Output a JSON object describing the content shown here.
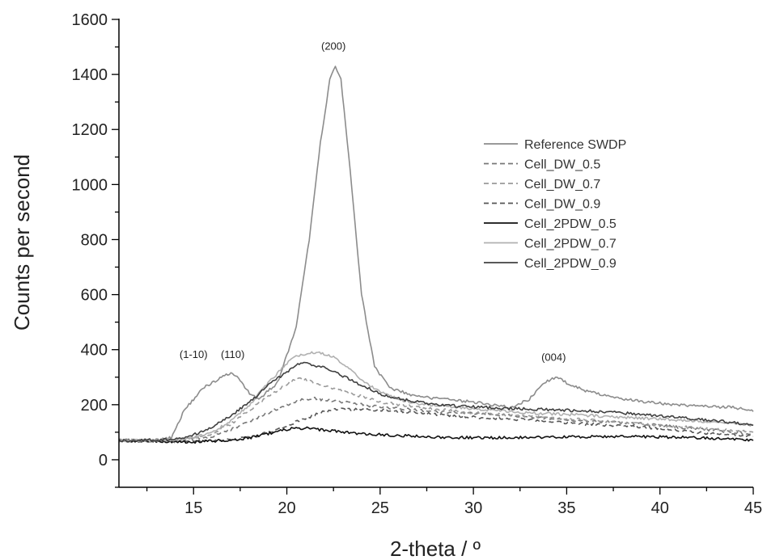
{
  "chart_data": {
    "type": "line",
    "xlabel": "2-theta / º",
    "ylabel": "Counts per second",
    "xlim": [
      11,
      45
    ],
    "ylim": [
      -100,
      1600
    ],
    "xticks": [
      "15",
      "20",
      "25",
      "30",
      "35",
      "40",
      "45"
    ],
    "yticks": [
      "0",
      "200",
      "400",
      "600",
      "800",
      "1000",
      "1200",
      "1400",
      "1600"
    ],
    "legend_position": "upper-right",
    "grid": false,
    "annotations": [
      {
        "text": "(1-10)",
        "x": 15.0,
        "y": 370
      },
      {
        "text": "(110)",
        "x": 17.1,
        "y": 370
      },
      {
        "text": "(200)",
        "x": 22.5,
        "y": 1490
      },
      {
        "text": "(004)",
        "x": 34.3,
        "y": 360
      }
    ],
    "series": [
      {
        "name": "Reference SWDP",
        "color": "#8c8c8c",
        "dash": "solid",
        "x": [
          11,
          13,
          13.8,
          14.5,
          15.5,
          16.5,
          17,
          17.5,
          18,
          18.5,
          19.5,
          20.5,
          21.2,
          21.8,
          22.3,
          22.6,
          22.9,
          23.4,
          24,
          24.7,
          25.5,
          27,
          30,
          32,
          33,
          33.8,
          34.4,
          35,
          36,
          38,
          40,
          42,
          44,
          45
        ],
        "y": [
          70,
          72,
          80,
          180,
          260,
          300,
          315,
          290,
          240,
          220,
          280,
          480,
          800,
          1150,
          1380,
          1430,
          1380,
          1050,
          600,
          340,
          260,
          230,
          210,
          190,
          220,
          280,
          300,
          280,
          250,
          220,
          205,
          195,
          190,
          175
        ]
      },
      {
        "name": "Cell_DW_0.5",
        "color": "#777777",
        "dash": "6,4",
        "x": [
          11,
          13,
          14.5,
          16,
          17,
          18,
          19,
          20,
          20.8,
          21.5,
          22.5,
          24,
          26,
          28,
          30,
          32,
          34,
          36,
          38,
          40,
          42,
          44,
          45
        ],
        "y": [
          70,
          70,
          72,
          85,
          110,
          140,
          170,
          200,
          220,
          222,
          215,
          200,
          185,
          175,
          168,
          160,
          150,
          142,
          135,
          125,
          112,
          100,
          92
        ]
      },
      {
        "name": "Cell_DW_0.7",
        "color": "#9a9a9a",
        "dash": "6,4",
        "x": [
          11,
          13,
          14.5,
          16,
          17,
          18,
          19,
          20,
          20.5,
          21,
          22,
          23.5,
          25,
          27,
          30,
          33,
          36,
          39,
          42,
          45
        ],
        "y": [
          70,
          70,
          75,
          95,
          130,
          180,
          230,
          275,
          295,
          290,
          270,
          240,
          210,
          190,
          170,
          158,
          145,
          130,
          115,
          100
        ]
      },
      {
        "name": "Cell_DW_0.9",
        "color": "#555555",
        "dash": "6,4",
        "x": [
          11,
          13,
          14.5,
          16,
          18,
          19.5,
          21,
          22,
          23,
          25,
          27,
          30,
          33,
          36,
          39,
          42,
          45
        ],
        "y": [
          70,
          68,
          65,
          68,
          80,
          110,
          150,
          175,
          185,
          180,
          170,
          155,
          145,
          130,
          120,
          100,
          85
        ]
      },
      {
        "name": "Cell_2PDW_0.5",
        "color": "#111111",
        "dash": "solid",
        "x": [
          11,
          13,
          14,
          15,
          16,
          17,
          18,
          19,
          20,
          20.5,
          21,
          22,
          23,
          24,
          26,
          28,
          30,
          32,
          34,
          36,
          38,
          40,
          42,
          44,
          45
        ],
        "y": [
          70,
          68,
          65,
          65,
          68,
          72,
          80,
          95,
          110,
          115,
          115,
          108,
          100,
          95,
          88,
          82,
          80,
          80,
          82,
          84,
          85,
          83,
          80,
          75,
          70
        ]
      },
      {
        "name": "Cell_2PDW_0.7",
        "color": "#b0b0b0",
        "dash": "solid",
        "x": [
          11,
          13,
          14,
          15,
          16,
          17,
          18,
          19,
          20,
          20.5,
          21,
          21.5,
          22,
          22.5,
          23,
          24,
          25,
          26,
          27,
          29,
          31,
          33,
          35,
          37,
          40,
          42,
          44,
          45
        ],
        "y": [
          70,
          70,
          72,
          80,
          100,
          140,
          200,
          280,
          350,
          375,
          385,
          390,
          385,
          375,
          350,
          290,
          245,
          220,
          205,
          190,
          180,
          170,
          165,
          158,
          148,
          140,
          132,
          125
        ]
      },
      {
        "name": "Cell_2PDW_0.9",
        "color": "#404040",
        "dash": "solid",
        "x": [
          11,
          13,
          14,
          15,
          16,
          17,
          18,
          19,
          20,
          20.5,
          21,
          22,
          23,
          24,
          25,
          26,
          27,
          28,
          30,
          32,
          34,
          36,
          38,
          40,
          42,
          44,
          45
        ],
        "y": [
          70,
          72,
          75,
          90,
          120,
          160,
          210,
          270,
          320,
          345,
          350,
          335,
          305,
          270,
          240,
          222,
          210,
          200,
          192,
          186,
          182,
          178,
          170,
          160,
          148,
          135,
          125
        ]
      }
    ]
  }
}
